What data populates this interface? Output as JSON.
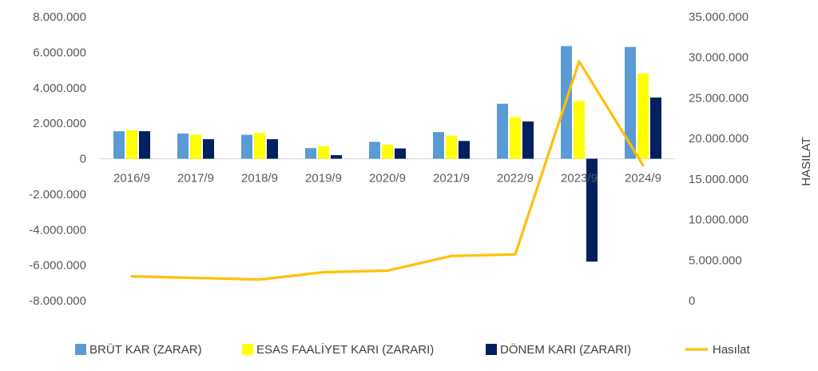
{
  "chart_data": {
    "type": "bar",
    "categories": [
      "2016/9",
      "2017/9",
      "2018/9",
      "2019/9",
      "2020/9",
      "2021/9",
      "2022/9",
      "2023/9",
      "2024/9"
    ],
    "series": [
      {
        "name": "BRÜT KAR (ZARAR)",
        "kind": "bar",
        "axis": "left",
        "color": "#5b9bd5",
        "values": [
          1550000,
          1420000,
          1350000,
          600000,
          950000,
          1500000,
          3100000,
          6350000,
          6300000
        ]
      },
      {
        "name": "ESAS FAALİYET KARI (ZARARI)",
        "kind": "bar",
        "axis": "left",
        "color": "#ffff00",
        "values": [
          1600000,
          1350000,
          1450000,
          700000,
          800000,
          1300000,
          2350000,
          3250000,
          4800000
        ]
      },
      {
        "name": "DÖNEM KARI (ZARARI)",
        "kind": "bar",
        "axis": "left",
        "color": "#002060",
        "values": [
          1550000,
          1100000,
          1100000,
          200000,
          580000,
          1000000,
          2100000,
          -5800000,
          3450000
        ]
      },
      {
        "name": "Hasılat",
        "kind": "line",
        "axis": "right",
        "color": "#ffc000",
        "values": [
          3000000,
          2800000,
          2600000,
          3500000,
          3700000,
          5500000,
          5700000,
          29500000,
          16700000
        ]
      }
    ],
    "y_left": {
      "lim": [
        -8000000,
        8000000
      ],
      "ticks": [
        "-8.000.000",
        "-6.000.000",
        "-4.000.000",
        "-2.000.000",
        "0",
        "2.000.000",
        "4.000.000",
        "6.000.000",
        "8.000.000"
      ],
      "tick_values": [
        -8000000,
        -6000000,
        -4000000,
        -2000000,
        0,
        2000000,
        4000000,
        6000000,
        8000000
      ]
    },
    "y_right": {
      "label": "HASILAT",
      "lim": [
        0,
        35000000
      ],
      "ticks": [
        "0",
        "5.000.000",
        "10.000.000",
        "15.000.000",
        "20.000.000",
        "25.000.000",
        "30.000.000",
        "35.000.000"
      ],
      "tick_values": [
        0,
        5000000,
        10000000,
        15000000,
        20000000,
        25000000,
        30000000,
        35000000
      ]
    },
    "grid": false,
    "legend_position": "bottom"
  }
}
